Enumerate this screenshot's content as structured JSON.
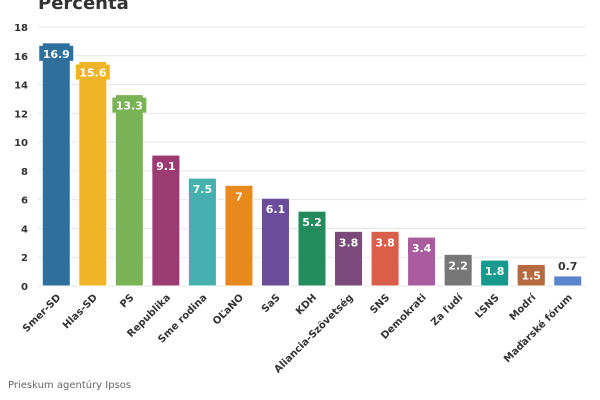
{
  "chart_data": {
    "type": "bar",
    "title": "Percenta",
    "categories": [
      "Smer-SD",
      "Hlas-SD",
      "PS",
      "Republika",
      "Sme rodina",
      "OĽaNO",
      "SaS",
      "KDH",
      "Aliancia-Szövetség",
      "SNS",
      "Demokrati",
      "Za ľudí",
      "ĽSNS",
      "Modrí",
      "Maďarské fórum"
    ],
    "values": [
      16.9,
      15.6,
      13.3,
      9.1,
      7.5,
      7,
      6.1,
      5.2,
      3.8,
      3.8,
      3.4,
      2.2,
      1.8,
      1.5,
      0.7
    ],
    "colors": [
      "#2e6f9e",
      "#f0b429",
      "#7ab356",
      "#9b3b72",
      "#46b0b0",
      "#e8891e",
      "#6b4c9a",
      "#238b5e",
      "#7a4a7a",
      "#d95f4b",
      "#a85c9e",
      "#777777",
      "#169a8e",
      "#b56a3f",
      "#5b84cf"
    ],
    "ylim": [
      0,
      18
    ],
    "yticks": [
      0,
      2,
      4,
      6,
      8,
      10,
      12,
      14,
      16,
      18
    ],
    "grid": true,
    "xlabel": "",
    "ylabel": ""
  },
  "source": "Prieskum agentúry Ipsos"
}
